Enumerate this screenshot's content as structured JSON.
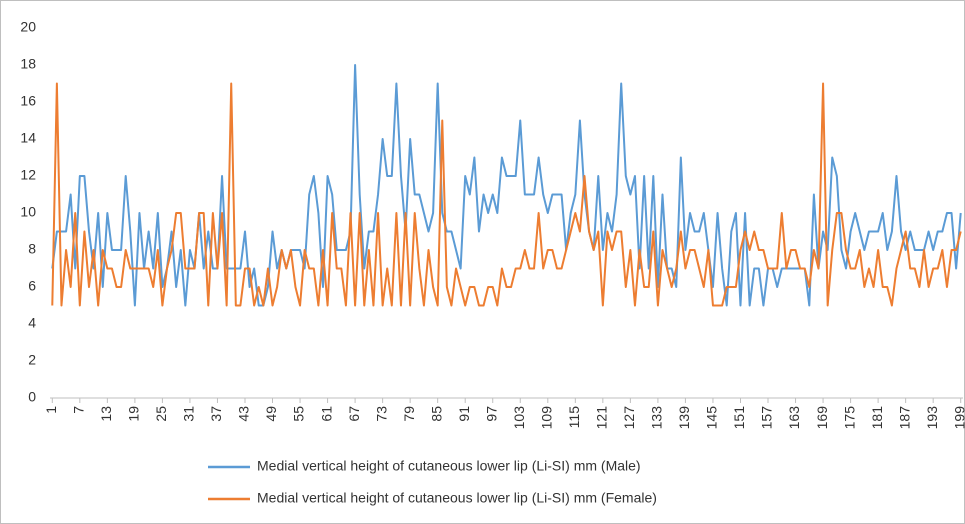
{
  "chart_data": {
    "type": "line",
    "categories": [
      1,
      null,
      null,
      null,
      null,
      null,
      7,
      null,
      null,
      null,
      null,
      null,
      13,
      null,
      null,
      null,
      null,
      null,
      19,
      null,
      null,
      null,
      null,
      null,
      25,
      null,
      null,
      null,
      null,
      null,
      31,
      null,
      null,
      null,
      null,
      null,
      37,
      null,
      null,
      null,
      null,
      null,
      43,
      null,
      null,
      null,
      null,
      null,
      49,
      null,
      null,
      null,
      null,
      null,
      55,
      null,
      null,
      null,
      null,
      null,
      61,
      null,
      null,
      null,
      null,
      null,
      67,
      null,
      null,
      null,
      null,
      null,
      73,
      null,
      null,
      null,
      null,
      null,
      79,
      null,
      null,
      null,
      null,
      null,
      85,
      null,
      null,
      null,
      null,
      null,
      91,
      null,
      null,
      null,
      null,
      null,
      97,
      null,
      null,
      null,
      null,
      null,
      103,
      null,
      null,
      null,
      null,
      null,
      109,
      null,
      null,
      null,
      null,
      null,
      115,
      null,
      null,
      null,
      null,
      null,
      121,
      null,
      null,
      null,
      null,
      null,
      127,
      null,
      null,
      null,
      null,
      null,
      133,
      null,
      null,
      null,
      null,
      null,
      139,
      null,
      null,
      null,
      null,
      null,
      145,
      null,
      null,
      null,
      null,
      null,
      151,
      null,
      null,
      null,
      null,
      null,
      157,
      null,
      null,
      null,
      null,
      null,
      163,
      null,
      null,
      null,
      null,
      null,
      169,
      null,
      null,
      null,
      null,
      null,
      175,
      null,
      null,
      null,
      null,
      null,
      181,
      null,
      null,
      null,
      null,
      null,
      187,
      null,
      null,
      null,
      null,
      null,
      193,
      null,
      null,
      null,
      null,
      null,
      199
    ],
    "series": [
      {
        "name": "Medial vertical height of cutaneous lower lip (Li-SI) mm (Male)",
        "color": "#5b9bd5",
        "values": [
          7,
          9,
          9,
          9,
          11,
          7,
          12,
          12,
          9,
          7,
          10,
          6,
          10,
          8,
          8,
          8,
          12,
          9,
          5,
          10,
          7,
          9,
          7,
          10,
          6,
          7,
          9,
          6,
          8,
          5,
          8,
          7,
          10,
          7,
          9,
          7,
          7,
          12,
          7,
          7,
          7,
          7,
          9,
          6,
          7,
          5,
          5,
          6,
          9,
          7,
          8,
          7,
          8,
          8,
          8,
          7,
          11,
          12,
          10,
          6,
          12,
          11,
          8,
          8,
          8,
          9,
          18,
          11,
          7,
          9,
          9,
          11,
          14,
          12,
          12,
          17,
          12,
          9,
          14,
          11,
          11,
          10,
          9,
          10,
          17,
          10,
          9,
          9,
          8,
          7,
          12,
          11,
          13,
          9,
          11,
          10,
          11,
          10,
          13,
          12,
          12,
          12,
          15,
          11,
          11,
          11,
          13,
          11,
          10,
          11,
          11,
          11,
          8,
          10,
          11,
          15,
          11,
          9,
          8,
          12,
          8,
          10,
          9,
          11,
          17,
          12,
          11,
          12,
          7,
          12,
          7,
          12,
          6,
          11,
          7,
          7,
          6,
          13,
          8,
          10,
          9,
          9,
          10,
          8,
          6,
          10,
          7,
          5,
          9,
          10,
          5,
          10,
          5,
          7,
          7,
          5,
          7,
          7,
          6,
          7,
          7,
          7,
          7,
          7,
          7,
          5,
          11,
          7,
          9,
          8,
          13,
          12,
          8,
          7,
          9,
          10,
          9,
          8,
          9,
          9,
          9,
          10,
          8,
          9,
          12,
          9,
          8,
          9,
          8,
          8,
          8,
          9,
          8,
          9,
          9,
          10,
          10,
          7,
          10
        ]
      },
      {
        "name": "Medial vertical height of cutaneous lower lip (Li-SI) mm (Female)",
        "color": "#ed7d31",
        "values": [
          5,
          17,
          5,
          8,
          6,
          10,
          5,
          9,
          6,
          8,
          5,
          8,
          7,
          7,
          6,
          6,
          8,
          7,
          7,
          7,
          7,
          7,
          6,
          8,
          5,
          7,
          8,
          10,
          10,
          7,
          7,
          7,
          10,
          10,
          5,
          10,
          7,
          10,
          5,
          17,
          5,
          5,
          7,
          7,
          5,
          6,
          5,
          7,
          5,
          6,
          8,
          7,
          8,
          6,
          5,
          8,
          7,
          7,
          5,
          8,
          5,
          10,
          7,
          7,
          5,
          10,
          5,
          10,
          5,
          8,
          5,
          10,
          5,
          7,
          5,
          10,
          5,
          10,
          5,
          10,
          7,
          5,
          8,
          6,
          5,
          15,
          6,
          5,
          7,
          6,
          5,
          6,
          6,
          5,
          5,
          6,
          6,
          5,
          7,
          6,
          6,
          7,
          7,
          8,
          7,
          7,
          10,
          7,
          8,
          8,
          7,
          7,
          8,
          9,
          10,
          9,
          12,
          9,
          8,
          9,
          5,
          9,
          8,
          9,
          9,
          6,
          8,
          5,
          8,
          6,
          6,
          9,
          5,
          8,
          7,
          6,
          7,
          9,
          7,
          8,
          8,
          7,
          6,
          8,
          5,
          5,
          5,
          6,
          6,
          6,
          8,
          9,
          8,
          9,
          8,
          8,
          7,
          7,
          7,
          10,
          7,
          8,
          8,
          7,
          7,
          6,
          8,
          7,
          17,
          5,
          8,
          10,
          10,
          8,
          7,
          7,
          8,
          6,
          7,
          6,
          8,
          6,
          6,
          5,
          7,
          8,
          9,
          7,
          7,
          6,
          8,
          6,
          7,
          7,
          8,
          6,
          8,
          8,
          9
        ]
      }
    ],
    "ylim": [
      0,
      20
    ],
    "yticks": [
      0,
      2,
      4,
      6,
      8,
      10,
      12,
      14,
      16,
      18,
      20
    ],
    "grid": false,
    "legend": "bottom"
  }
}
